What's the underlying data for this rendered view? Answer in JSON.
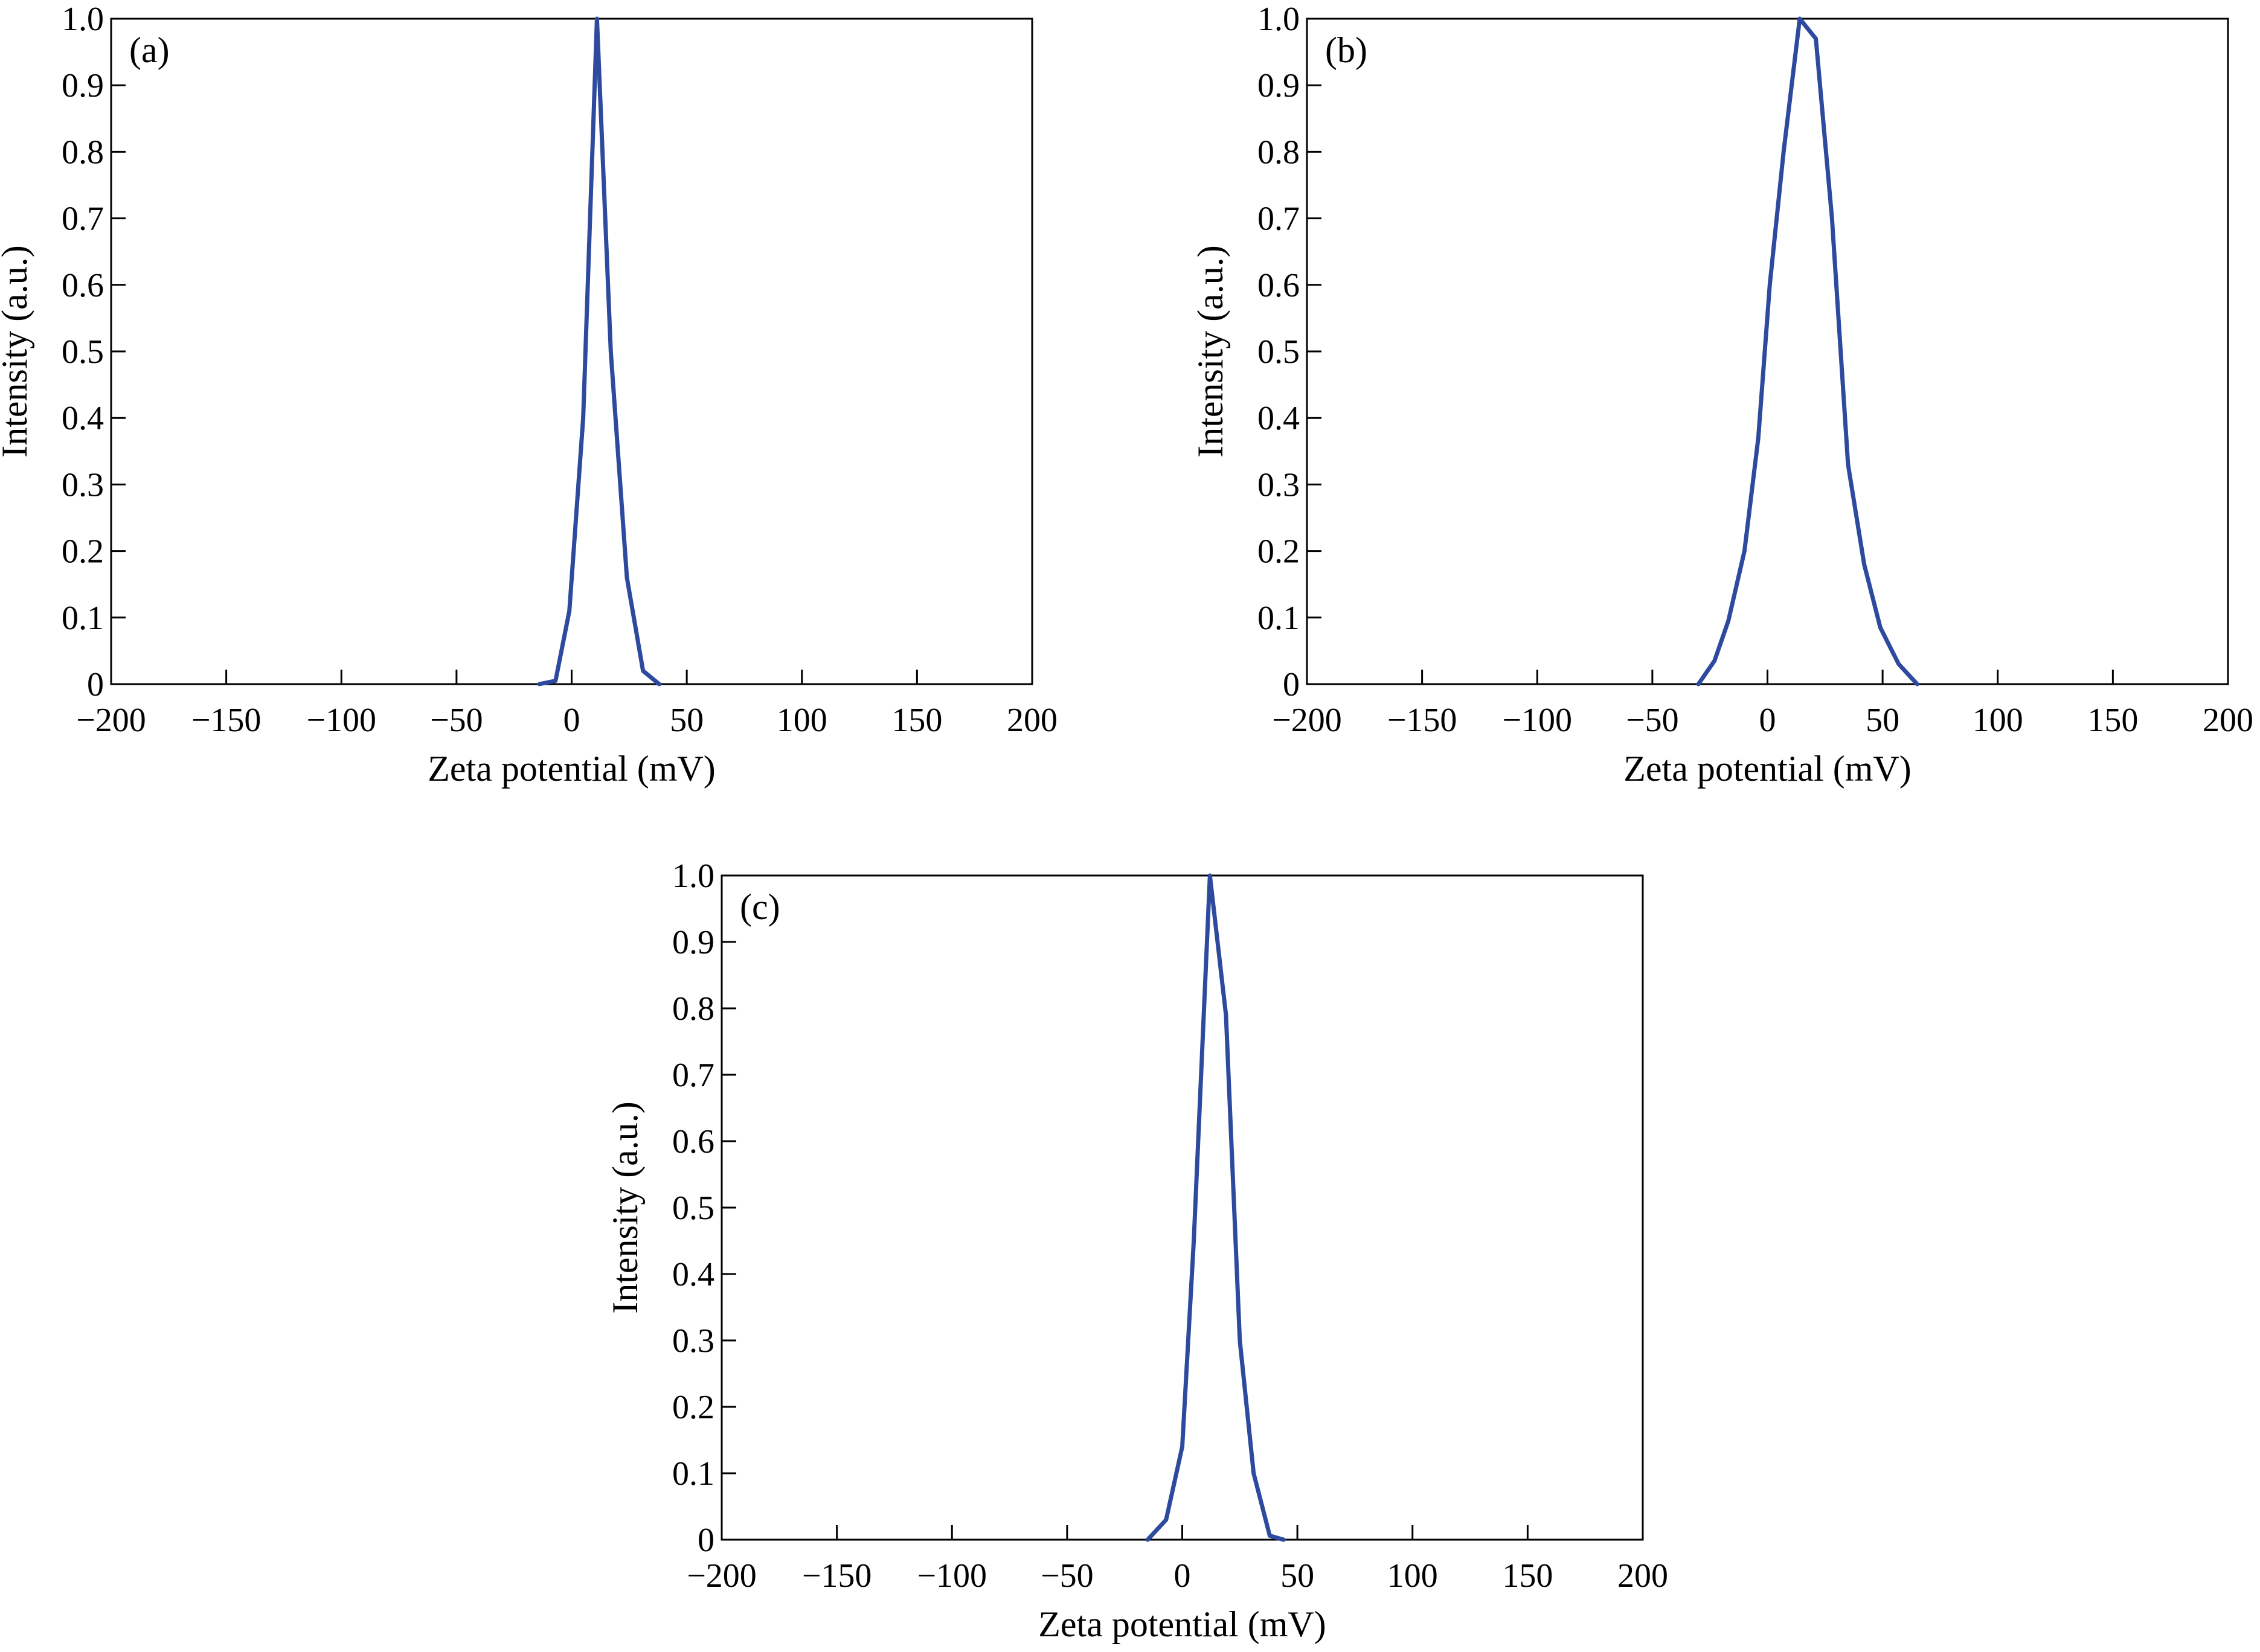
{
  "chart_data": [
    {
      "type": "line",
      "panel_label": "(a)",
      "xlabel": "Zeta potential (mV)",
      "ylabel": "Intensity (a.u.)",
      "xlim": [
        -200,
        200
      ],
      "ylim": [
        0,
        1.0
      ],
      "x_ticks": [
        -200,
        -150,
        -100,
        -50,
        0,
        50,
        100,
        150,
        200
      ],
      "x_tick_labels": [
        "−200",
        "−150",
        "−100",
        "−50",
        "0",
        "50",
        "100",
        "150",
        "200"
      ],
      "y_ticks": [
        0,
        0.1,
        0.2,
        0.3,
        0.4,
        0.5,
        0.6,
        0.7,
        0.8,
        0.9,
        1.0
      ],
      "y_tick_labels": [
        "0",
        "0.1",
        "0.2",
        "0.3",
        "0.4",
        "0.5",
        "0.6",
        "0.7",
        "0.8",
        "0.9",
        "1.0"
      ],
      "grid": false,
      "line_color": "#2e4a9e",
      "series": [
        {
          "x": [
            -14,
            -7,
            -1,
            5,
            11,
            17,
            24,
            31,
            38
          ],
          "y": [
            0,
            0.005,
            0.11,
            0.4,
            1.0,
            0.5,
            0.16,
            0.02,
            0
          ]
        }
      ]
    },
    {
      "type": "line",
      "panel_label": "(b)",
      "xlabel": "Zeta potential (mV)",
      "ylabel": "Intensity (a.u.)",
      "xlim": [
        -200,
        200
      ],
      "ylim": [
        0,
        1.0
      ],
      "x_ticks": [
        -200,
        -150,
        -100,
        -50,
        0,
        50,
        100,
        150,
        200
      ],
      "x_tick_labels": [
        "−200",
        "−150",
        "−100",
        "−50",
        "0",
        "50",
        "100",
        "150",
        "200"
      ],
      "y_ticks": [
        0,
        0.1,
        0.2,
        0.3,
        0.4,
        0.5,
        0.6,
        0.7,
        0.8,
        0.9,
        1.0
      ],
      "y_tick_labels": [
        "0",
        "0.1",
        "0.2",
        "0.3",
        "0.4",
        "0.5",
        "0.6",
        "0.7",
        "0.8",
        "0.9",
        "1.0"
      ],
      "grid": false,
      "line_color": "#2e4a9e",
      "series": [
        {
          "x": [
            -30,
            -23,
            -17,
            -10,
            -4,
            1,
            7,
            14,
            21,
            28,
            35,
            42,
            49,
            57,
            65
          ],
          "y": [
            0,
            0.035,
            0.095,
            0.2,
            0.37,
            0.6,
            0.8,
            1.0,
            0.97,
            0.7,
            0.33,
            0.18,
            0.085,
            0.03,
            0
          ]
        }
      ]
    },
    {
      "type": "line",
      "panel_label": "(c)",
      "xlabel": "Zeta potential (mV)",
      "ylabel": "Intensity (a.u.)",
      "xlim": [
        -200,
        200
      ],
      "ylim": [
        0,
        1.0
      ],
      "x_ticks": [
        -200,
        -150,
        -100,
        -50,
        0,
        50,
        100,
        150,
        200
      ],
      "x_tick_labels": [
        "−200",
        "−150",
        "−100",
        "−50",
        "0",
        "50",
        "100",
        "150",
        "200"
      ],
      "y_ticks": [
        0,
        0.1,
        0.2,
        0.3,
        0.4,
        0.5,
        0.6,
        0.7,
        0.8,
        0.9,
        1.0
      ],
      "y_tick_labels": [
        "0",
        "0.1",
        "0.2",
        "0.3",
        "0.4",
        "0.5",
        "0.6",
        "0.7",
        "0.8",
        "0.9",
        "1.0"
      ],
      "grid": false,
      "line_color": "#2e4a9e",
      "series": [
        {
          "x": [
            -15,
            -7,
            0,
            5,
            12,
            19,
            25,
            31,
            38,
            44
          ],
          "y": [
            0,
            0.03,
            0.14,
            0.45,
            1.0,
            0.79,
            0.3,
            0.1,
            0.006,
            0
          ]
        }
      ]
    }
  ]
}
